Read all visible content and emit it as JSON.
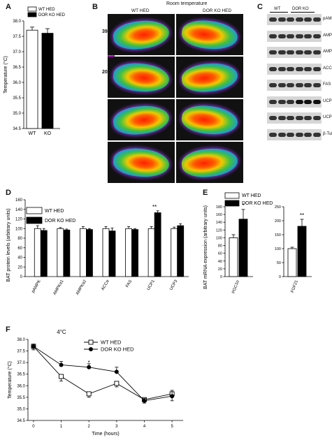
{
  "panels": {
    "A": {
      "label": "A",
      "chart_data": {
        "type": "bar",
        "categories": [
          "WT",
          "KO"
        ],
        "values": [
          37.7,
          37.6
        ],
        "errors": [
          0.1,
          0.15
        ],
        "ylabel": "Temperature (°C)",
        "ylim": [
          34.5,
          38.0
        ],
        "yticks": [
          "34.5",
          "35.0",
          "35.5",
          "36.0",
          "36.5",
          "37.0",
          "37.5",
          "38.0"
        ],
        "legend": [
          "WT HED",
          "DOR KO HED"
        ],
        "colors": [
          "#ffffff",
          "#000000"
        ]
      }
    },
    "B": {
      "label": "B",
      "title": "Room temperature",
      "columns": [
        "WT HED",
        "DOR KO HED"
      ],
      "scale_max": "39.3°C",
      "scale_min": "20.1°C"
    },
    "C": {
      "label": "C",
      "columns": [
        "WT",
        "DOR KO"
      ],
      "rows": [
        "pAMPK",
        "AMPKα1",
        "AMPKα2",
        "ACCα",
        "FAS",
        "UCP1",
        "UCP3",
        "β-Tubulin"
      ]
    },
    "D": {
      "label": "D",
      "chart_data": {
        "type": "bar",
        "categories": [
          "pAMPK",
          "AMPKα1",
          "AMPKα2",
          "ACCα",
          "FAS",
          "UCP1",
          "UCP3"
        ],
        "series": [
          {
            "name": "WT HED",
            "values": [
              100,
              100,
              100,
              100,
              100,
              100,
              100
            ],
            "errors": [
              6,
              2,
              4,
              4,
              4,
              4,
              3
            ]
          },
          {
            "name": "DOR KO HED",
            "values": [
              96,
              97,
              98,
              95,
              98,
              133,
              106
            ],
            "errors": [
              4,
              2,
              2,
              6,
              2,
              4,
              4
            ]
          }
        ],
        "annotations": [
          "",
          "",
          "",
          "",
          "",
          "**",
          ""
        ],
        "ylabel": "BAT protein levels (arbitrary units)",
        "ylim": [
          0,
          160
        ],
        "yticks": [
          "0",
          "20",
          "40",
          "60",
          "80",
          "100",
          "120",
          "140",
          "160"
        ]
      }
    },
    "E": {
      "label": "E",
      "chart_data": [
        {
          "type": "bar",
          "categories": [
            "PGC1α"
          ],
          "series": [
            {
              "name": "WT HED",
              "values": [
                100
              ],
              "errors": [
                8
              ]
            },
            {
              "name": "DOR KO HED",
              "values": [
                148
              ],
              "errors": [
                25
              ]
            }
          ],
          "annotation": "*",
          "ylim": [
            0,
            180
          ],
          "yticks": [
            "0",
            "20",
            "40",
            "60",
            "80",
            "100",
            "120",
            "140",
            "160",
            "180"
          ]
        },
        {
          "type": "bar",
          "categories": [
            "FGF21"
          ],
          "series": [
            {
              "name": "WT HED",
              "values": [
                100
              ],
              "errors": [
                5
              ]
            },
            {
              "name": "DOR KO HED",
              "values": [
                180
              ],
              "errors": [
                25
              ]
            }
          ],
          "annotation": "**",
          "ylim": [
            0,
            250
          ],
          "yticks": [
            "0",
            "50",
            "100",
            "150",
            "200",
            "250"
          ]
        }
      ],
      "ylabel": "BAT mRNA expression (arbitrary units)",
      "legend": [
        "WT HED",
        "DOR KO HED"
      ]
    },
    "F": {
      "label": "F",
      "chart_data": {
        "type": "line",
        "title": "4°C",
        "x": [
          0,
          1,
          2,
          3,
          4,
          5
        ],
        "series": [
          {
            "name": "WT HED",
            "values": [
              37.7,
              36.4,
              35.65,
              36.1,
              35.4,
              35.65
            ],
            "errors": [
              0.15,
              0.2,
              0.15,
              0.15,
              0.15,
              0.3
            ],
            "marker": "open-square"
          },
          {
            "name": "DOR KO HED",
            "values": [
              37.7,
              36.9,
              36.8,
              36.6,
              35.35,
              35.55
            ],
            "errors": [
              0.1,
              0.15,
              0.15,
              0.2,
              0.1,
              0.25
            ],
            "marker": "filled-circle"
          }
        ],
        "annotations": [
          {
            "x": 2,
            "text": "*"
          }
        ],
        "xlabel": "Time (hours)",
        "ylabel": "Temperature (°C)",
        "ylim": [
          34.5,
          38.0
        ],
        "yticks": [
          "34.5",
          "35.0",
          "35.5",
          "36.0",
          "36.5",
          "37.0",
          "37.5",
          "38.0"
        ],
        "xticks": [
          "0",
          "1",
          "2",
          "3",
          "4",
          "5"
        ]
      }
    }
  }
}
